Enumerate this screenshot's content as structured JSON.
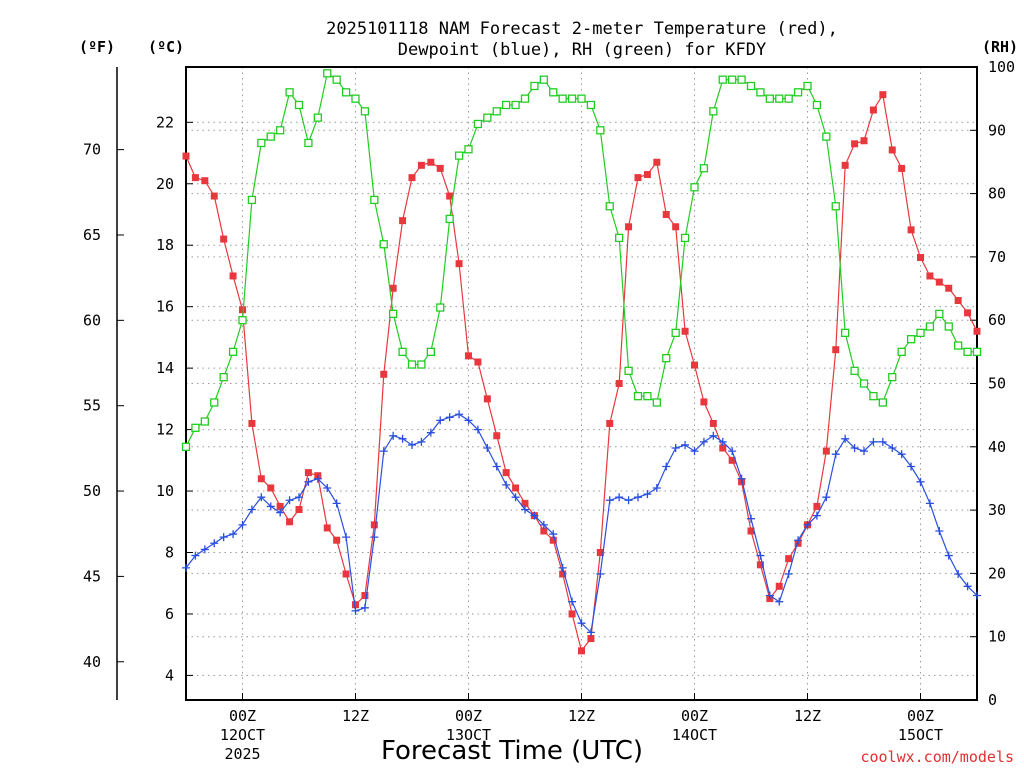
{
  "chart_data": {
    "type": "line",
    "title_line1": "2025101118 NAM Forecast 2-meter Temperature (red),",
    "title_line2": "Dewpoint (blue), RH (green) for KFDY",
    "xlabel": "Forecast Time (UTC)",
    "credit": "coolwx.com/models",
    "unit_left_f": "(ºF)",
    "unit_left_c": "(ºC)",
    "unit_right": "(RH)",
    "x_start_hour": 18,
    "x_end_hour": 102,
    "c_ylim": [
      3.2,
      23.8
    ],
    "rh_ylim": [
      0,
      100
    ],
    "f_ticks": [
      "40",
      "45",
      "50",
      "55",
      "60",
      "65",
      "70"
    ],
    "c_ticks": [
      "4",
      "6",
      "8",
      "10",
      "12",
      "14",
      "16",
      "18",
      "20",
      "22"
    ],
    "rh_ticks": [
      "0",
      "10",
      "20",
      "30",
      "40",
      "50",
      "60",
      "70",
      "80",
      "90",
      "100"
    ],
    "x_ticks": [
      {
        "hour": 24,
        "time": "00Z",
        "date": "12OCT",
        "year": "2025"
      },
      {
        "hour": 36,
        "time": "12Z",
        "date": "",
        "year": ""
      },
      {
        "hour": 48,
        "time": "00Z",
        "date": "13OCT",
        "year": ""
      },
      {
        "hour": 60,
        "time": "12Z",
        "date": "",
        "year": ""
      },
      {
        "hour": 72,
        "time": "00Z",
        "date": "14OCT",
        "year": ""
      },
      {
        "hour": 84,
        "time": "12Z",
        "date": "",
        "year": ""
      },
      {
        "hour": 96,
        "time": "00Z",
        "date": "15OCT",
        "year": ""
      }
    ],
    "series": [
      {
        "name": "2-meter Temperature (°C)",
        "color": "#e8383d",
        "marker": "filled-square",
        "axis": "celsius",
        "values": [
          20.9,
          20.2,
          20.1,
          19.6,
          18.2,
          17.0,
          15.9,
          12.2,
          10.4,
          10.1,
          9.5,
          9.0,
          9.4,
          10.6,
          10.5,
          8.8,
          8.4,
          7.3,
          6.3,
          6.6,
          8.9,
          13.8,
          16.6,
          18.8,
          20.2,
          20.6,
          20.7,
          20.5,
          19.6,
          17.4,
          14.4,
          14.2,
          13.0,
          11.8,
          10.6,
          10.1,
          9.6,
          9.2,
          8.7,
          8.4,
          7.3,
          6.0,
          4.8,
          5.2,
          8.0,
          12.2,
          13.5,
          18.6,
          20.2,
          20.3,
          20.7,
          19.0,
          18.6,
          15.2,
          14.1,
          12.9,
          12.2,
          11.4,
          11.0,
          10.3,
          8.7,
          7.6,
          6.5,
          6.9,
          7.8,
          8.3,
          8.9,
          9.5,
          11.3,
          14.6,
          20.6,
          21.3,
          21.4,
          22.4,
          22.9,
          21.1,
          20.5,
          18.5,
          17.6,
          17.0,
          16.8,
          16.6,
          16.2,
          15.8,
          15.2
        ]
      },
      {
        "name": "Dewpoint (°C)",
        "color": "#2a4fe0",
        "marker": "plus",
        "axis": "celsius",
        "values": [
          7.5,
          7.9,
          8.1,
          8.3,
          8.5,
          8.6,
          8.9,
          9.4,
          9.8,
          9.5,
          9.3,
          9.7,
          9.8,
          10.3,
          10.4,
          10.1,
          9.6,
          8.5,
          6.1,
          6.2,
          8.5,
          11.3,
          11.8,
          11.7,
          11.5,
          11.6,
          11.9,
          12.3,
          12.4,
          12.5,
          12.3,
          12.0,
          11.4,
          10.8,
          10.2,
          9.8,
          9.4,
          9.2,
          8.9,
          8.6,
          7.5,
          6.4,
          5.7,
          5.4,
          7.3,
          9.7,
          9.8,
          9.7,
          9.8,
          9.9,
          10.1,
          10.8,
          11.4,
          11.5,
          11.3,
          11.6,
          11.8,
          11.6,
          11.3,
          10.4,
          9.1,
          7.9,
          6.6,
          6.4,
          7.3,
          8.4,
          8.9,
          9.2,
          9.8,
          11.2,
          11.7,
          11.4,
          11.3,
          11.6,
          11.6,
          11.4,
          11.2,
          10.8,
          10.3,
          9.6,
          8.7,
          7.9,
          7.3,
          6.9,
          6.6
        ]
      },
      {
        "name": "RH (%)",
        "color": "#22cc22",
        "marker": "open-square",
        "axis": "rh",
        "values": [
          40,
          43,
          44,
          47,
          51,
          55,
          60,
          79,
          88,
          89,
          90,
          96,
          94,
          88,
          92,
          99,
          98,
          96,
          95,
          93,
          79,
          72,
          61,
          55,
          53,
          53,
          55,
          62,
          76,
          86,
          87,
          91,
          92,
          93,
          94,
          94,
          95,
          97,
          98,
          96,
          95,
          95,
          95,
          94,
          90,
          78,
          73,
          52,
          48,
          48,
          47,
          54,
          58,
          73,
          81,
          84,
          93,
          98,
          98,
          98,
          97,
          96,
          95,
          95,
          95,
          96,
          97,
          94,
          89,
          78,
          58,
          52,
          50,
          48,
          47,
          51,
          55,
          57,
          58,
          59,
          61,
          59,
          56,
          55,
          55
        ]
      }
    ]
  }
}
